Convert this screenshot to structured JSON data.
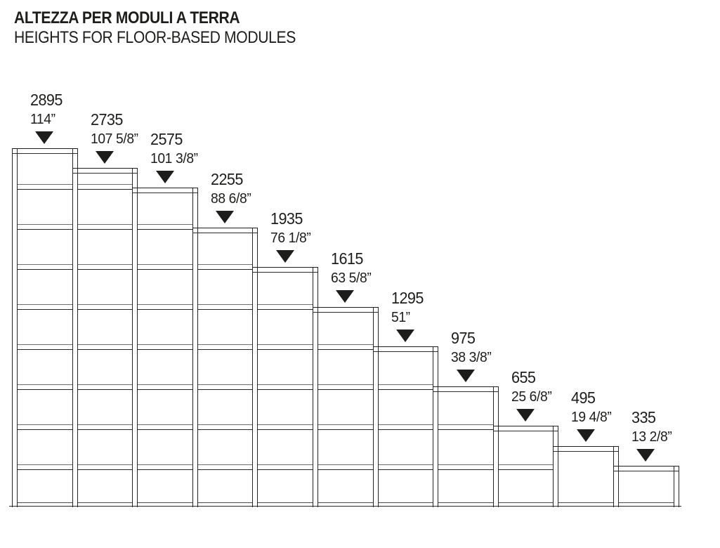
{
  "title": {
    "line1_it": "ALTEZZA PER MODULI A TERRA",
    "line2_en": "HEIGHTS FOR FLOOR-BASED MODULES"
  },
  "colors": {
    "line": "#1d1d1b",
    "shelf_edge": "#6e6e6c",
    "text": "#1d1d1b",
    "background": "#ffffff",
    "pointer": "#1d1d1b"
  },
  "modules": [
    {
      "mm": "2895",
      "inches": "114”",
      "height_mm": 2895,
      "shelf_grid_lines": [
        1,
        2,
        3,
        4,
        5,
        6,
        7,
        8
      ]
    },
    {
      "mm": "2735",
      "inches": "107 5/8”",
      "height_mm": 2735,
      "shelf_grid_lines": [
        1,
        2,
        3,
        4,
        5,
        6,
        7,
        8
      ]
    },
    {
      "mm": "2575",
      "inches": "101 3/8”",
      "height_mm": 2575,
      "shelf_grid_lines": [
        2,
        3,
        4,
        5,
        6,
        7,
        8
      ]
    },
    {
      "mm": "2255",
      "inches": "88 6/8”",
      "height_mm": 2255,
      "shelf_grid_lines": [
        3,
        4,
        5,
        6,
        7,
        8
      ]
    },
    {
      "mm": "1935",
      "inches": "76 1/8”",
      "height_mm": 1935,
      "shelf_grid_lines": [
        4,
        5,
        6,
        7,
        8
      ]
    },
    {
      "mm": "1615",
      "inches": "63 5/8”",
      "height_mm": 1615,
      "shelf_grid_lines": [
        5,
        6,
        7,
        8
      ]
    },
    {
      "mm": "1295",
      "inches": "51”",
      "height_mm": 1295,
      "shelf_grid_lines": [
        6,
        7,
        8
      ]
    },
    {
      "mm": "975",
      "inches": "38 3/8”",
      "height_mm": 975,
      "shelf_grid_lines": [
        7,
        8
      ]
    },
    {
      "mm": "655",
      "inches": "25 6/8”",
      "height_mm": 655,
      "shelf_grid_lines": [
        8
      ]
    },
    {
      "mm": "495",
      "inches": "19 4/8”",
      "height_mm": 495,
      "shelf_grid_lines": []
    },
    {
      "mm": "335",
      "inches": "13 2/8”",
      "height_mm": 335,
      "shelf_grid_lines": []
    }
  ]
}
